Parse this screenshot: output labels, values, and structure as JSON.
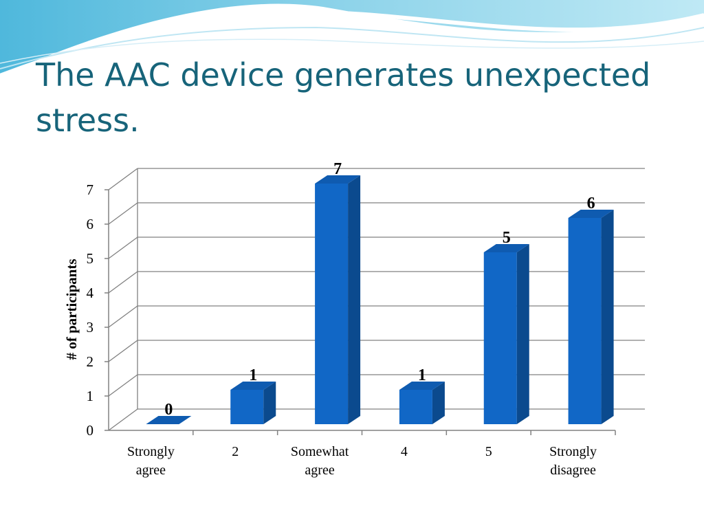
{
  "slide": {
    "title": "The AAC device generates unexpected stress."
  },
  "chart_data": {
    "type": "bar",
    "categories": [
      [
        "Strongly",
        "agree"
      ],
      [
        "2"
      ],
      [
        "Somewhat",
        "agree"
      ],
      [
        "4"
      ],
      [
        "5"
      ],
      [
        "Strongly",
        "disagree"
      ]
    ],
    "values": [
      0,
      1,
      7,
      1,
      5,
      6
    ],
    "ylabel": "# of participants",
    "xlabel": "",
    "ylim": [
      0,
      7
    ],
    "yticks": [
      0,
      1,
      2,
      3,
      4,
      5,
      6,
      7
    ],
    "data_labels": true,
    "grid": true,
    "style": "3d-column",
    "colors": {
      "bar_front": "#1167c6",
      "bar_side": "#0b4a8e",
      "bar_top": "#0f5bb0",
      "title": "#17647a"
    }
  }
}
